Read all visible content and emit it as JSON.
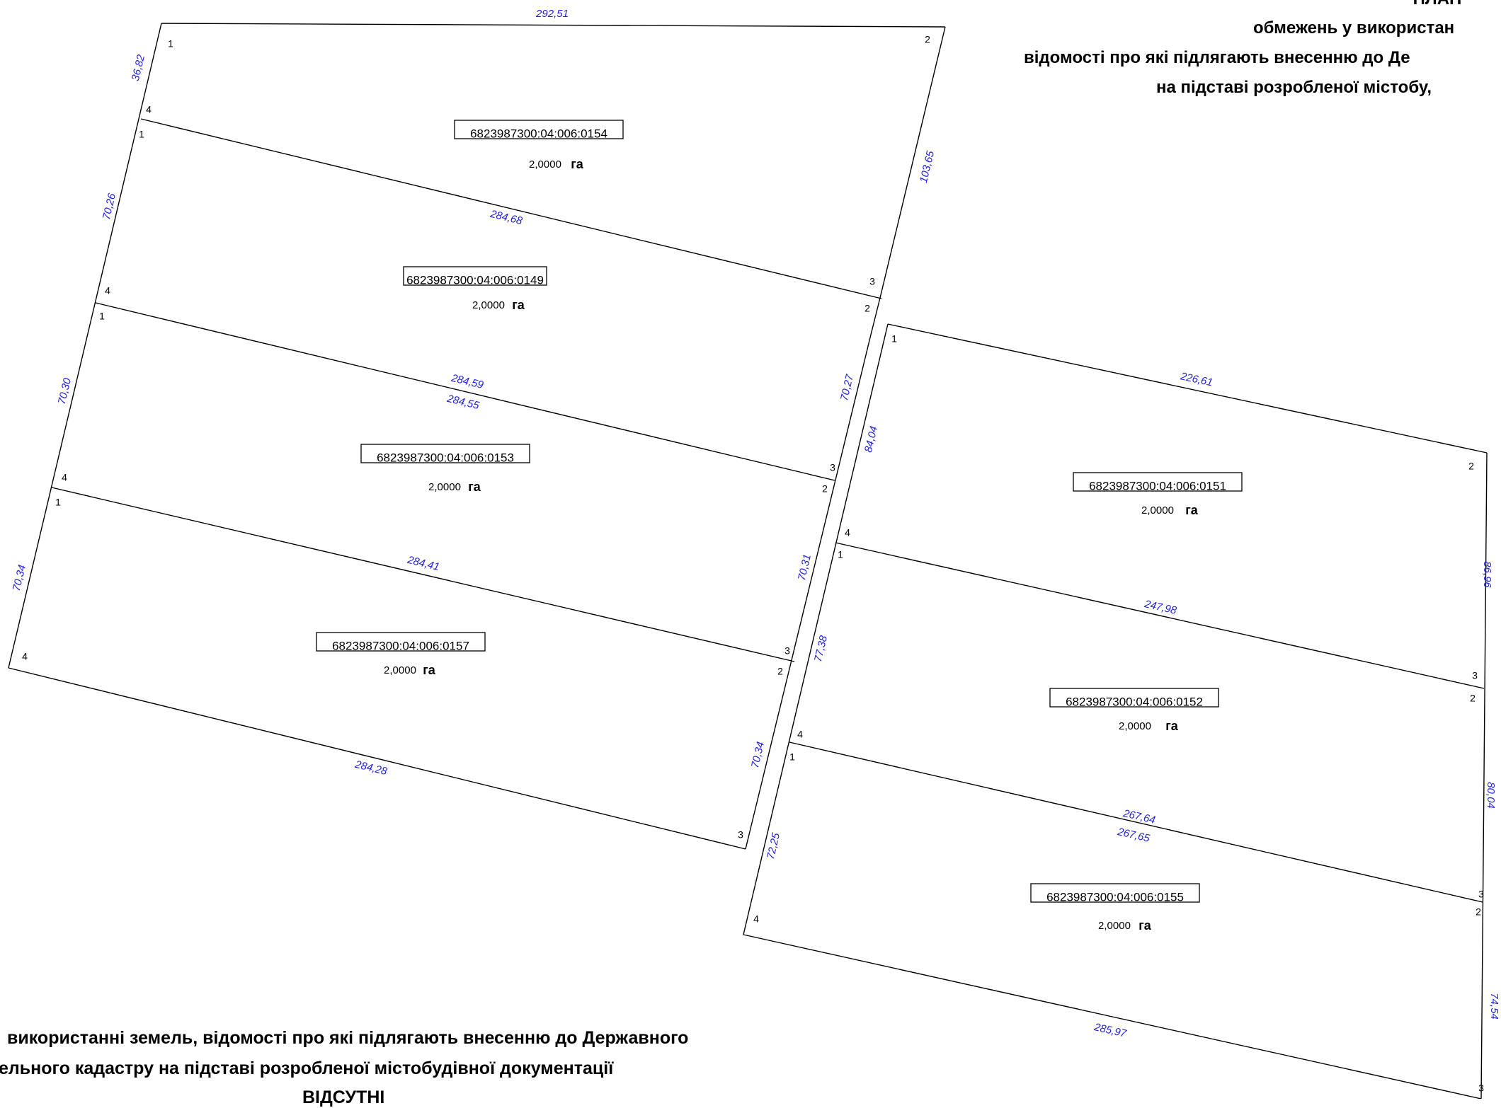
{
  "header": {
    "title": "ПЛАН",
    "line1": "обмежень у використан",
    "line2": "відомості про які підлягають внесенню до Де",
    "line3": "на підставі розробленої містобу,"
  },
  "footer": {
    "line1": "використанні земель, відомості про які підлягають внесенню до Державного",
    "line2": "ельного кадастру на підставі розробленої містобудівної документації",
    "line3": "ВІДСУТНІ"
  },
  "unit": "га",
  "parcels": [
    {
      "id": "0154",
      "cadastral_number": "6823987300:04:006:0154",
      "area": "2,0000"
    },
    {
      "id": "0149",
      "cadastral_number": "6823987300:04:006:0149",
      "area": "2,0000"
    },
    {
      "id": "0153",
      "cadastral_number": "6823987300:04:006:0153",
      "area": "2,0000"
    },
    {
      "id": "0157",
      "cadastral_number": "6823987300:04:006:0157",
      "area": "2,0000"
    },
    {
      "id": "0151",
      "cadastral_number": "6823987300:04:006:0151",
      "area": "2,0000"
    },
    {
      "id": "0152",
      "cadastral_number": "6823987300:04:006:0152",
      "area": "2,0000"
    },
    {
      "id": "0155",
      "cadastral_number": "6823987300:04:006:0155",
      "area": "2,0000"
    }
  ],
  "lengths": [
    "292,51",
    "36,82",
    "103,65",
    "284,68",
    "70,26",
    "70,27",
    "284,59",
    "284,55",
    "70,30",
    "84,04",
    "284,41",
    "70,34",
    "70,31",
    "77,38",
    "284,28",
    "70,34",
    "72,25",
    "226,61",
    "86,96",
    "247,98",
    "80,04",
    "267,64",
    "267,65",
    "285,97",
    "74,54"
  ],
  "vertices": [
    "1",
    "2",
    "4",
    "1",
    "3",
    "2",
    "4",
    "1",
    "3",
    "2",
    "4",
    "1",
    "3",
    "2",
    "4",
    "3",
    "1",
    "2",
    "4",
    "1",
    "3",
    "2",
    "4",
    "1",
    "3",
    "2",
    "4",
    "3"
  ],
  "colors": {
    "line": "#000000",
    "length_text": "#1f1fd6",
    "label_box_border": "#000000"
  }
}
